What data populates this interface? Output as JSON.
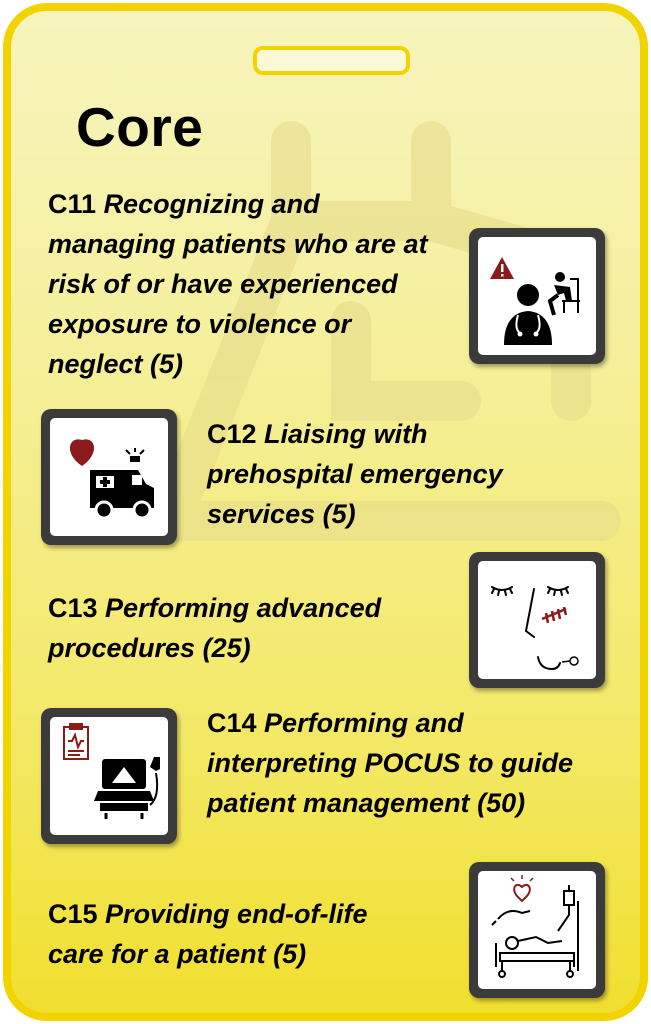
{
  "title": "Core",
  "items": [
    {
      "code": "C11",
      "label": "Recognizing and managing patients who are at risk of or have experienced exposure to violence or neglect",
      "count": "(5)",
      "icon": "doctor-alert-icon"
    },
    {
      "code": "C12",
      "label": "Liaising with prehospital emergency services",
      "count": "(5)",
      "icon": "ambulance-heart-icon"
    },
    {
      "code": "C13",
      "label": "Performing advanced procedures",
      "count": "(25)",
      "icon": "sutured-face-icon"
    },
    {
      "code": "C14",
      "label": "Performing and interpreting POCUS to guide patient management",
      "count": "(50)",
      "icon": "ultrasound-machine-icon"
    },
    {
      "code": "C15",
      "label": "Providing end-of-life care for a patient",
      "count": "(5)",
      "icon": "patient-bed-icon"
    }
  ],
  "colors": {
    "card_border": "#f1d300",
    "tile_frame": "#3b3b3b",
    "icon_red": "#8b1a1a"
  }
}
